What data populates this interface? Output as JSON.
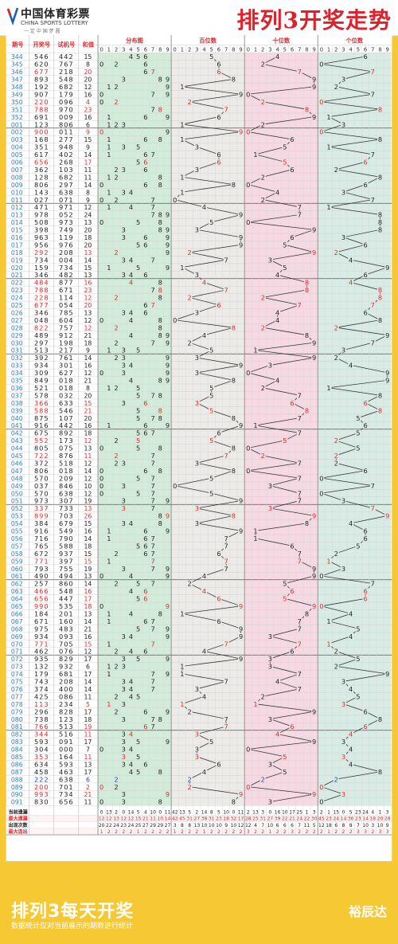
{
  "header": {
    "logo_cn": "中国体育彩票",
    "logo_en": "CHINA SPORTS LOTTERY",
    "logo_slogan": "一 定 中 国 梦 圆",
    "title": "排列3开奖走势"
  },
  "columns": {
    "issue": "期号",
    "draw": "开奖号",
    "test": "试机号",
    "sum": "和值",
    "dist": "分布图",
    "hundreds": "百位数",
    "tens": "十位数",
    "units": "个位数",
    "digits": [
      "0",
      "1",
      "2",
      "3",
      "4",
      "5",
      "6",
      "7",
      "8",
      "9"
    ]
  },
  "colors": {
    "hot": "#e8262b",
    "special": "#1f3fd2",
    "line": "#333333",
    "dist_bg": "#d3ecd9",
    "hundreds_bg": "#ecebe7",
    "tens_bg": "#f6d9e3",
    "units_bg": "#d8ece5",
    "issue": "#2f7fc1"
  },
  "chart_data": {
    "type": "table",
    "rows": [
      {
        "issue": "344",
        "draw": "546",
        "test": "442",
        "sum": "15"
      },
      {
        "issue": "345",
        "draw": "620",
        "test": "767",
        "sum": "8"
      },
      {
        "issue": "346",
        "draw": "677",
        "test": "218",
        "sum": "20"
      },
      {
        "issue": "347",
        "draw": "893",
        "test": "548",
        "sum": "20"
      },
      {
        "issue": "348",
        "draw": "192",
        "test": "682",
        "sum": "12"
      },
      {
        "issue": "349",
        "draw": "907",
        "test": "179",
        "sum": "16"
      },
      {
        "issue": "350",
        "draw": "220",
        "test": "096",
        "sum": "4"
      },
      {
        "issue": "351",
        "draw": "788",
        "test": "970",
        "sum": "23"
      },
      {
        "issue": "352",
        "draw": "691",
        "test": "009",
        "sum": "16"
      },
      {
        "issue": "001",
        "draw": "123",
        "test": "806",
        "sum": "6"
      },
      {
        "issue": "002",
        "draw": "900",
        "test": "011",
        "sum": "9"
      },
      {
        "issue": "003",
        "draw": "168",
        "test": "277",
        "sum": "15"
      },
      {
        "issue": "004",
        "draw": "351",
        "test": "948",
        "sum": "9"
      },
      {
        "issue": "005",
        "draw": "617",
        "test": "402",
        "sum": "14"
      },
      {
        "issue": "006",
        "draw": "656",
        "test": "268",
        "sum": "17"
      },
      {
        "issue": "007",
        "draw": "362",
        "test": "103",
        "sum": "11"
      },
      {
        "issue": "008",
        "draw": "128",
        "test": "682",
        "sum": "11"
      },
      {
        "issue": "009",
        "draw": "806",
        "test": "297",
        "sum": "14"
      },
      {
        "issue": "010",
        "draw": "143",
        "test": "638",
        "sum": "8"
      },
      {
        "issue": "011",
        "draw": "027",
        "test": "071",
        "sum": "9"
      },
      {
        "issue": "012",
        "draw": "471",
        "test": "971",
        "sum": "12"
      },
      {
        "issue": "013",
        "draw": "978",
        "test": "052",
        "sum": "24"
      },
      {
        "issue": "014",
        "draw": "508",
        "test": "973",
        "sum": "13"
      },
      {
        "issue": "015",
        "draw": "398",
        "test": "749",
        "sum": "20"
      },
      {
        "issue": "016",
        "draw": "963",
        "test": "119",
        "sum": "18"
      },
      {
        "issue": "017",
        "draw": "956",
        "test": "976",
        "sum": "20"
      },
      {
        "issue": "018",
        "draw": "292",
        "test": "208",
        "sum": "13"
      },
      {
        "issue": "019",
        "draw": "734",
        "test": "004",
        "sum": "14"
      },
      {
        "issue": "020",
        "draw": "159",
        "test": "734",
        "sum": "15"
      },
      {
        "issue": "021",
        "draw": "346",
        "test": "482",
        "sum": "13"
      },
      {
        "issue": "022",
        "draw": "484",
        "test": "877",
        "sum": "16"
      },
      {
        "issue": "023",
        "draw": "788",
        "test": "671",
        "sum": "23"
      },
      {
        "issue": "024",
        "draw": "228",
        "test": "114",
        "sum": "12"
      },
      {
        "issue": "025",
        "draw": "677",
        "test": "054",
        "sum": "20"
      },
      {
        "issue": "026",
        "draw": "346",
        "test": "785",
        "sum": "13"
      },
      {
        "issue": "027",
        "draw": "048",
        "test": "604",
        "sum": "12"
      },
      {
        "issue": "028",
        "draw": "822",
        "test": "757",
        "sum": "12"
      },
      {
        "issue": "029",
        "draw": "489",
        "test": "912",
        "sum": "21"
      },
      {
        "issue": "030",
        "draw": "297",
        "test": "198",
        "sum": "18"
      },
      {
        "issue": "031",
        "draw": "513",
        "test": "217",
        "sum": "9"
      },
      {
        "issue": "032",
        "draw": "392",
        "test": "761",
        "sum": "14"
      },
      {
        "issue": "033",
        "draw": "934",
        "test": "301",
        "sum": "16"
      },
      {
        "issue": "034",
        "draw": "309",
        "test": "627",
        "sum": "12"
      },
      {
        "issue": "035",
        "draw": "849",
        "test": "018",
        "sum": "21"
      },
      {
        "issue": "036",
        "draw": "521",
        "test": "018",
        "sum": "8"
      },
      {
        "issue": "037",
        "draw": "578",
        "test": "032",
        "sum": "20"
      },
      {
        "issue": "038",
        "draw": "366",
        "test": "633",
        "sum": "15"
      },
      {
        "issue": "039",
        "draw": "588",
        "test": "546",
        "sum": "21"
      },
      {
        "issue": "040",
        "draw": "875",
        "test": "107",
        "sum": "20"
      },
      {
        "issue": "041",
        "draw": "916",
        "test": "442",
        "sum": "16"
      },
      {
        "issue": "042",
        "draw": "675",
        "test": "892",
        "sum": "18"
      },
      {
        "issue": "043",
        "draw": "552",
        "test": "173",
        "sum": "12"
      },
      {
        "issue": "044",
        "draw": "805",
        "test": "075",
        "sum": "13"
      },
      {
        "issue": "045",
        "draw": "722",
        "test": "876",
        "sum": "11"
      },
      {
        "issue": "046",
        "draw": "372",
        "test": "518",
        "sum": "12"
      },
      {
        "issue": "047",
        "draw": "806",
        "test": "018",
        "sum": "14"
      },
      {
        "issue": "048",
        "draw": "570",
        "test": "209",
        "sum": "12"
      },
      {
        "issue": "049",
        "draw": "037",
        "test": "846",
        "sum": "10"
      },
      {
        "issue": "050",
        "draw": "570",
        "test": "638",
        "sum": "12"
      },
      {
        "issue": "051",
        "draw": "973",
        "test": "307",
        "sum": "19"
      },
      {
        "issue": "052",
        "draw": "337",
        "test": "733",
        "sum": "13"
      },
      {
        "issue": "053",
        "draw": "899",
        "test": "703",
        "sum": "26"
      },
      {
        "issue": "054",
        "draw": "384",
        "test": "679",
        "sum": "15"
      },
      {
        "issue": "055",
        "draw": "916",
        "test": "549",
        "sum": "16"
      },
      {
        "issue": "056",
        "draw": "716",
        "test": "790",
        "sum": "14"
      },
      {
        "issue": "057",
        "draw": "765",
        "test": "588",
        "sum": "18"
      },
      {
        "issue": "058",
        "draw": "672",
        "test": "937",
        "sum": "15"
      },
      {
        "issue": "059",
        "draw": "771",
        "test": "397",
        "sum": "15"
      },
      {
        "issue": "060",
        "draw": "793",
        "test": "755",
        "sum": "19"
      },
      {
        "issue": "061",
        "draw": "490",
        "test": "494",
        "sum": "13"
      },
      {
        "issue": "062",
        "draw": "257",
        "test": "860",
        "sum": "14"
      },
      {
        "issue": "063",
        "draw": "466",
        "test": "548",
        "sum": "16"
      },
      {
        "issue": "064",
        "draw": "656",
        "test": "447",
        "sum": "17"
      },
      {
        "issue": "065",
        "draw": "990",
        "test": "535",
        "sum": "18"
      },
      {
        "issue": "066",
        "draw": "184",
        "test": "201",
        "sum": "13"
      },
      {
        "issue": "067",
        "draw": "671",
        "test": "160",
        "sum": "14"
      },
      {
        "issue": "068",
        "draw": "975",
        "test": "483",
        "sum": "21"
      },
      {
        "issue": "069",
        "draw": "934",
        "test": "093",
        "sum": "16"
      },
      {
        "issue": "070",
        "draw": "771",
        "test": "705",
        "sum": "15"
      },
      {
        "issue": "071",
        "draw": "462",
        "test": "076",
        "sum": "12"
      },
      {
        "issue": "072",
        "draw": "935",
        "test": "829",
        "sum": "17"
      },
      {
        "issue": "073",
        "draw": "132",
        "test": "932",
        "sum": "6"
      },
      {
        "issue": "074",
        "draw": "179",
        "test": "681",
        "sum": "17"
      },
      {
        "issue": "075",
        "draw": "743",
        "test": "208",
        "sum": "14"
      },
      {
        "issue": "076",
        "draw": "374",
        "test": "400",
        "sum": "14"
      },
      {
        "issue": "077",
        "draw": "425",
        "test": "086",
        "sum": "11"
      },
      {
        "issue": "078",
        "draw": "113",
        "test": "234",
        "sum": "5"
      },
      {
        "issue": "079",
        "draw": "296",
        "test": "828",
        "sum": "17"
      },
      {
        "issue": "080",
        "draw": "738",
        "test": "123",
        "sum": "18"
      },
      {
        "issue": "081",
        "draw": "766",
        "test": "513",
        "sum": "19"
      },
      {
        "issue": "082",
        "draw": "344",
        "test": "516",
        "sum": "11"
      },
      {
        "issue": "083",
        "draw": "593",
        "test": "091",
        "sum": "17"
      },
      {
        "issue": "084",
        "draw": "304",
        "test": "000",
        "sum": "7"
      },
      {
        "issue": "085",
        "draw": "353",
        "test": "164",
        "sum": "11"
      },
      {
        "issue": "086",
        "draw": "634",
        "test": "593",
        "sum": "13"
      },
      {
        "issue": "087",
        "draw": "458",
        "test": "463",
        "sum": "17"
      },
      {
        "issue": "088",
        "draw": "222",
        "test": "638",
        "sum": "6"
      },
      {
        "issue": "089",
        "draw": "200",
        "test": "701",
        "sum": "2"
      },
      {
        "issue": "090",
        "draw": "993",
        "test": "734",
        "sum": "21"
      },
      {
        "issue": "091",
        "draw": "830",
        "test": "656",
        "sum": "11"
      }
    ],
    "stats": [
      {
        "label": "当前遗漏",
        "dist": [
          "0",
          "13",
          "2",
          "0",
          "14",
          "5",
          "4",
          "10",
          "0",
          "11"
        ],
        "hundreds": [
          "42",
          "13",
          "5",
          "2",
          "14",
          "8",
          "5",
          "10",
          "0",
          "11"
        ],
        "tens": [
          "2",
          "13",
          "3",
          "0",
          "16",
          "10",
          "17",
          "25",
          "1",
          "3"
        ],
        "units": [
          "2",
          "1",
          "15",
          "0",
          "5",
          "23",
          "24",
          "4",
          "1",
          "3"
        ]
      },
      {
        "label": "最大遗漏",
        "dist": [
          "12",
          "12",
          "13",
          "12",
          "12",
          "15",
          "21",
          "11",
          "10",
          "14"
        ],
        "hundreds": [
          "42",
          "45",
          "31",
          "27",
          "38",
          "31",
          "23",
          "18",
          "32",
          "17"
        ],
        "tens": [
          "28",
          "25",
          "31",
          "27",
          "39",
          "22",
          "21",
          "24",
          "22",
          "30"
        ],
        "units": [
          "45",
          "23",
          "24",
          "14",
          "36",
          "23",
          "14",
          "18",
          "20",
          "28"
        ]
      },
      {
        "label": "出现次数",
        "dist": [
          "20",
          "22",
          "24",
          "23",
          "24",
          "25",
          "27",
          "29",
          "29",
          "27"
        ],
        "hundreds": [
          "3",
          "8",
          "8",
          "13",
          "10",
          "10",
          "10",
          "9",
          "10",
          "12"
        ],
        "tens": [
          "12",
          "4",
          "7",
          "10",
          "6",
          "6",
          "6",
          "7",
          "11",
          "5"
        ],
        "units": [
          "12",
          "18",
          "6",
          "8",
          "8",
          "7",
          "10",
          "3",
          "10",
          "9"
        ]
      },
      {
        "label": "最大连出",
        "dist": [
          "1",
          "2",
          "2",
          "2",
          "2",
          "1",
          "2",
          "2",
          "2",
          "2"
        ],
        "hundreds": [
          "1",
          "2",
          "2",
          "2",
          "1",
          "2",
          "2",
          "2",
          "2",
          "2"
        ],
        "tens": [
          "3",
          "2",
          "2",
          "1",
          "2",
          "2",
          "3",
          "2",
          "2",
          "2"
        ],
        "units": [
          "2",
          "1",
          "2",
          "2",
          "2",
          "3",
          "3",
          "2",
          "3",
          "3"
        ]
      }
    ]
  },
  "footer": {
    "title": "排列3每天开奖",
    "subtitle": "数据统计仅对当前展示的期数进行统计",
    "author": "裕辰达"
  }
}
